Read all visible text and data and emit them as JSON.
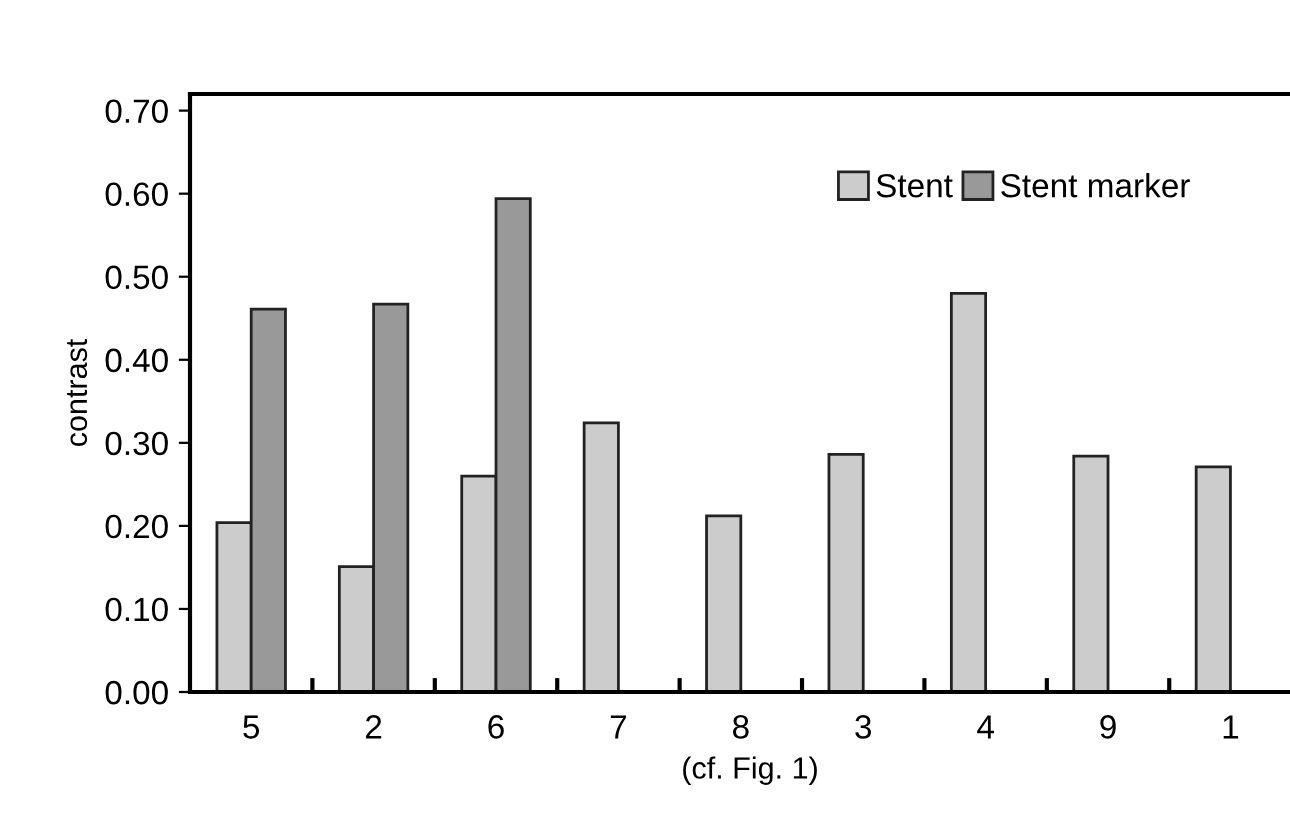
{
  "chart_data": {
    "type": "bar",
    "xlabel": "(cf. Fig. 1)",
    "ylabel": "contrast",
    "categories": [
      "5",
      "2",
      "6",
      "7",
      "8",
      "3",
      "4",
      "9",
      "1"
    ],
    "series": [
      {
        "name": "Stent",
        "color": "#cccccc",
        "values": [
          0.204,
          0.151,
          0.26,
          0.324,
          0.212,
          0.286,
          0.48,
          0.284,
          0.271
        ]
      },
      {
        "name": "Stent marker",
        "color": "#999999",
        "values": [
          0.461,
          0.467,
          0.594,
          null,
          null,
          null,
          null,
          null,
          null
        ]
      }
    ],
    "ylim": [
      0,
      0.72
    ],
    "yticks": [
      {
        "value": 0,
        "label": "0.00"
      },
      {
        "value": 0.1,
        "label": "0.10"
      },
      {
        "value": 0.2,
        "label": "0.20"
      },
      {
        "value": 0.3,
        "label": "0.30"
      },
      {
        "value": 0.4,
        "label": "0.40"
      },
      {
        "value": 0.5,
        "label": "0.50"
      },
      {
        "value": 0.6,
        "label": "0.60"
      },
      {
        "value": 0.7,
        "label": "0.70"
      }
    ],
    "grid": false,
    "legend": "top right"
  }
}
